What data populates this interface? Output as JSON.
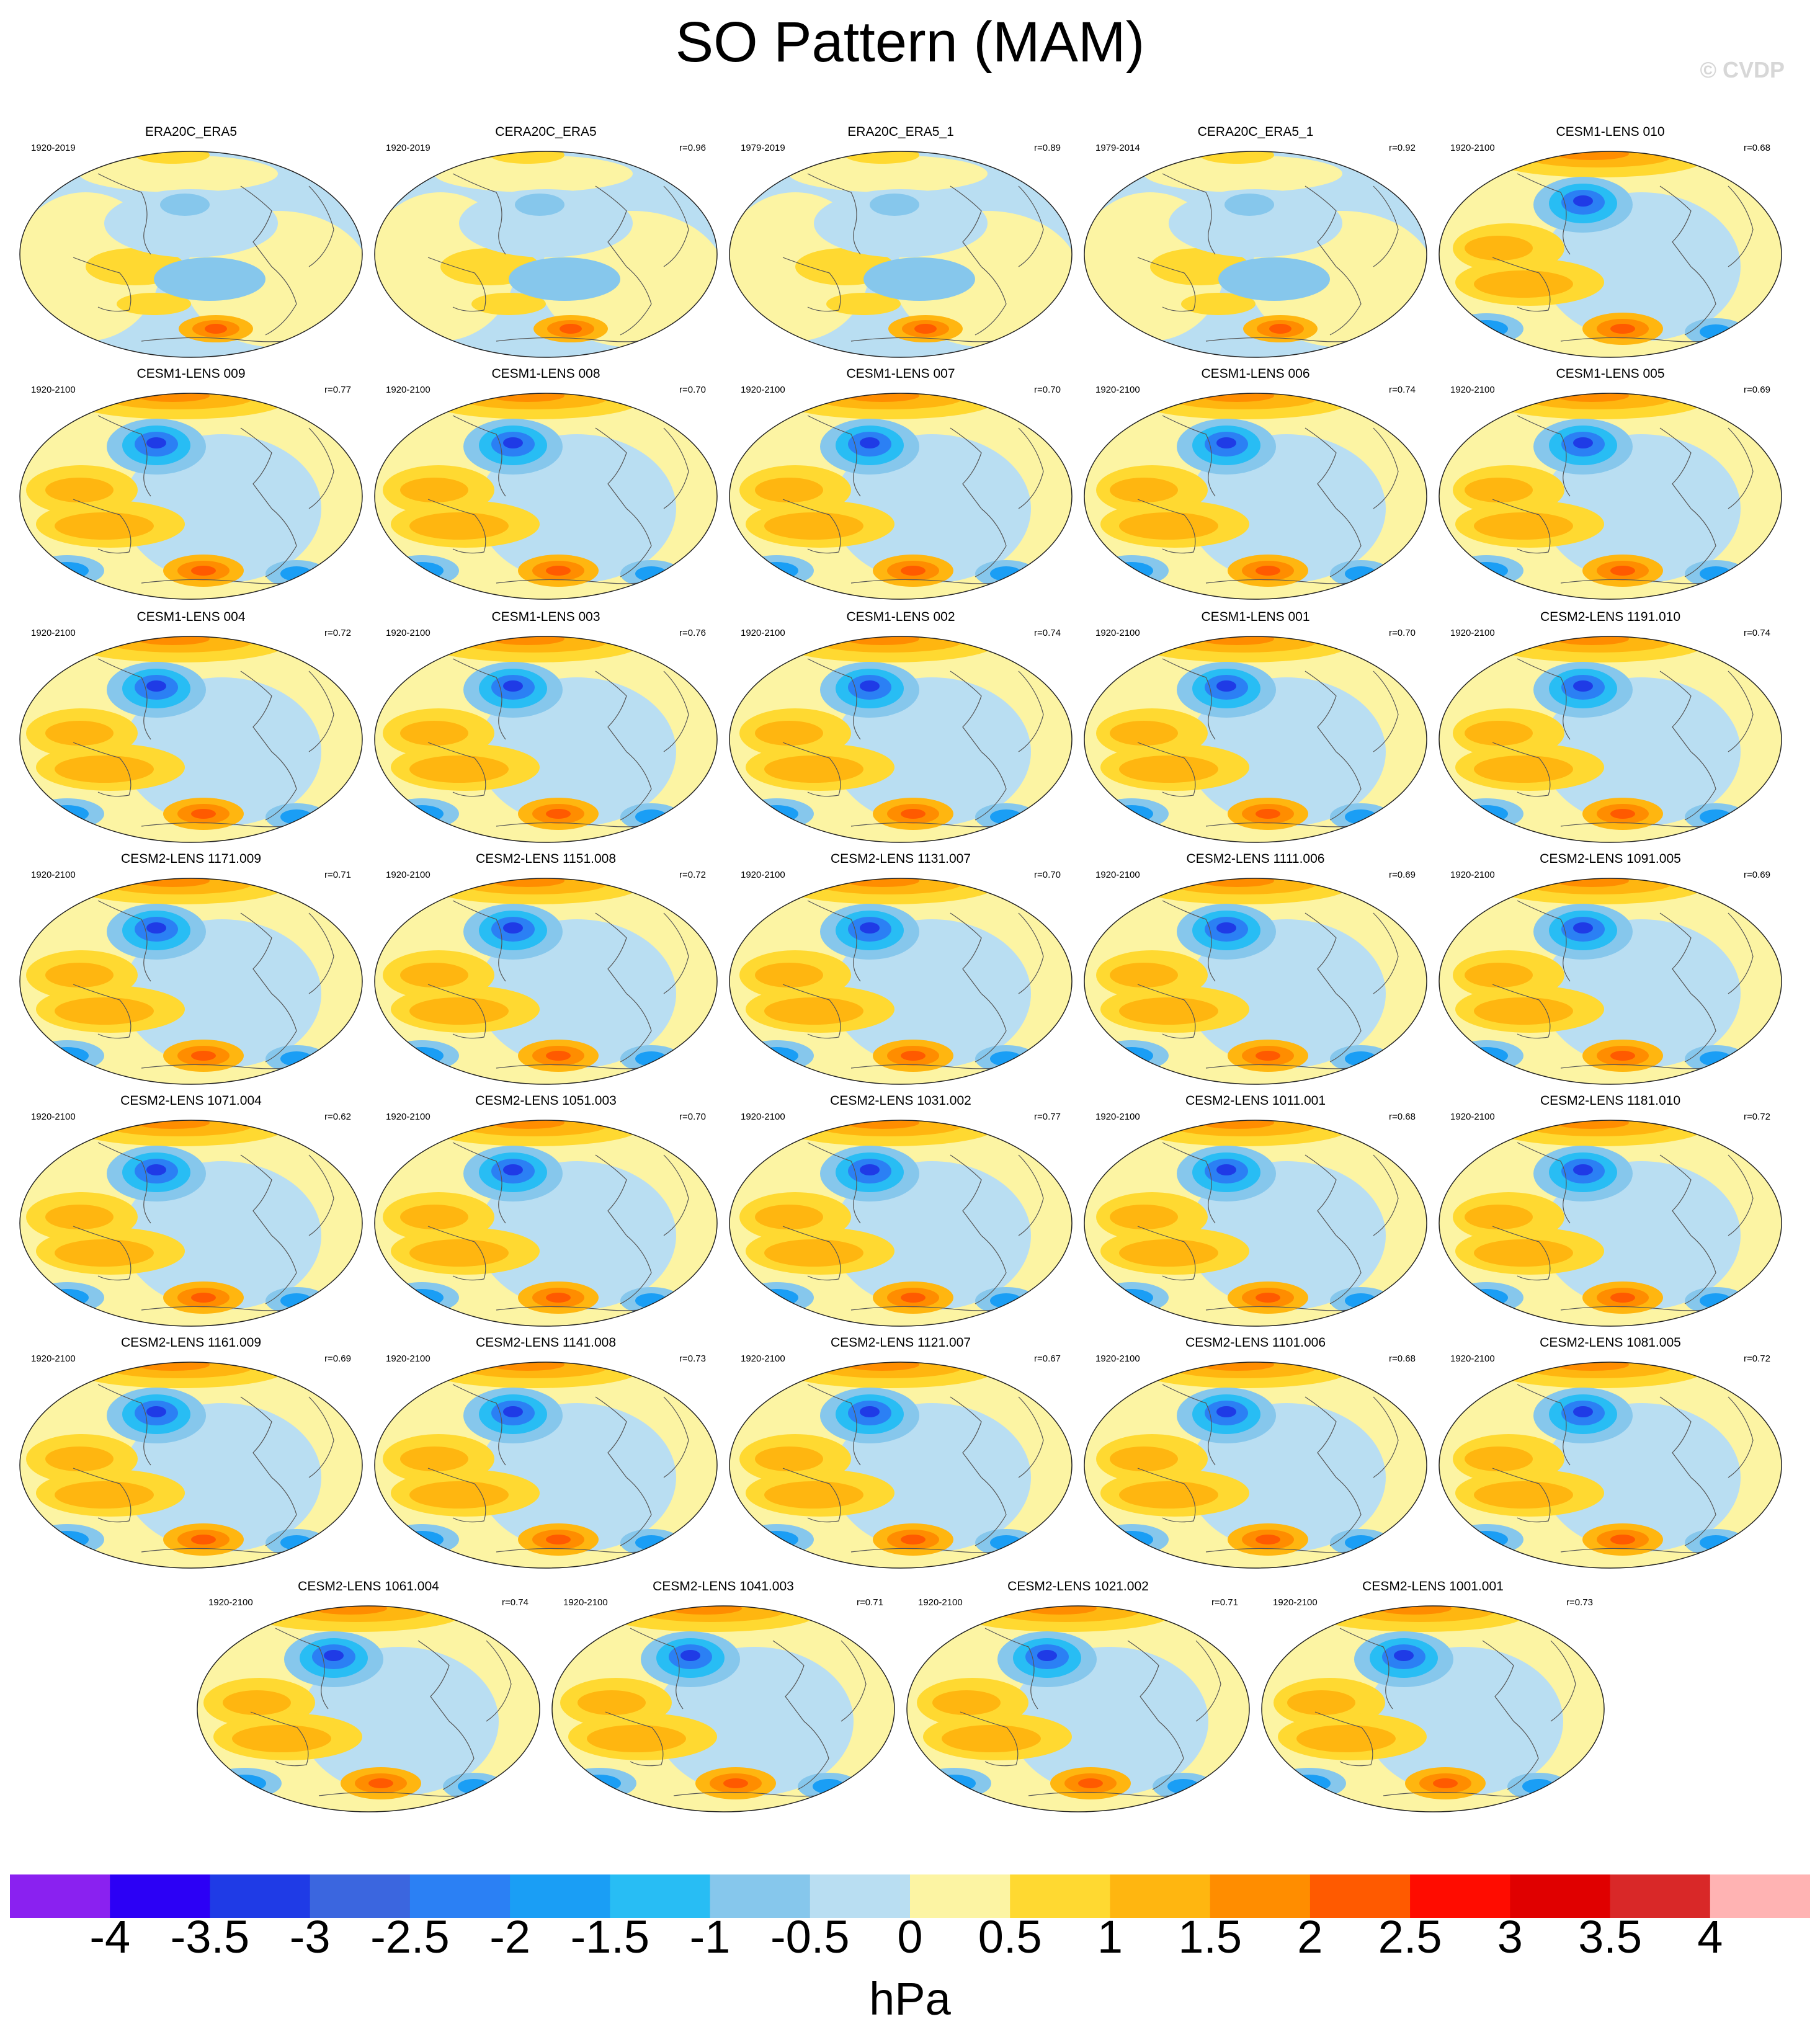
{
  "title": "SO Pattern (MAM)",
  "watermark": "© CVDP",
  "panels": [
    {
      "name": "ERA20C_ERA5",
      "years": "1920-2019",
      "corr": "",
      "style": "obs"
    },
    {
      "name": "CERA20C_ERA5",
      "years": "1920-2019",
      "corr": "r=0.96",
      "style": "obs"
    },
    {
      "name": "ERA20C_ERA5_1",
      "years": "1979-2019",
      "corr": "r=0.89",
      "style": "obs"
    },
    {
      "name": "CERA20C_ERA5_1",
      "years": "1979-2014",
      "corr": "r=0.92",
      "style": "obs"
    },
    {
      "name": "CESM1-LENS 010",
      "years": "1920-2100",
      "corr": "r=0.68",
      "style": "model"
    },
    {
      "name": "CESM1-LENS 009",
      "years": "1920-2100",
      "corr": "r=0.77",
      "style": "model"
    },
    {
      "name": "CESM1-LENS 008",
      "years": "1920-2100",
      "corr": "r=0.70",
      "style": "model"
    },
    {
      "name": "CESM1-LENS 007",
      "years": "1920-2100",
      "corr": "r=0.70",
      "style": "model"
    },
    {
      "name": "CESM1-LENS 006",
      "years": "1920-2100",
      "corr": "r=0.74",
      "style": "model"
    },
    {
      "name": "CESM1-LENS 005",
      "years": "1920-2100",
      "corr": "r=0.69",
      "style": "model"
    },
    {
      "name": "CESM1-LENS 004",
      "years": "1920-2100",
      "corr": "r=0.72",
      "style": "model"
    },
    {
      "name": "CESM1-LENS 003",
      "years": "1920-2100",
      "corr": "r=0.76",
      "style": "model"
    },
    {
      "name": "CESM1-LENS 002",
      "years": "1920-2100",
      "corr": "r=0.74",
      "style": "model"
    },
    {
      "name": "CESM1-LENS 001",
      "years": "1920-2100",
      "corr": "r=0.70",
      "style": "model"
    },
    {
      "name": "CESM2-LENS 1191.010",
      "years": "1920-2100",
      "corr": "r=0.74",
      "style": "model"
    },
    {
      "name": "CESM2-LENS 1171.009",
      "years": "1920-2100",
      "corr": "r=0.71",
      "style": "model"
    },
    {
      "name": "CESM2-LENS 1151.008",
      "years": "1920-2100",
      "corr": "r=0.72",
      "style": "model"
    },
    {
      "name": "CESM2-LENS 1131.007",
      "years": "1920-2100",
      "corr": "r=0.70",
      "style": "model"
    },
    {
      "name": "CESM2-LENS 1111.006",
      "years": "1920-2100",
      "corr": "r=0.69",
      "style": "model"
    },
    {
      "name": "CESM2-LENS 1091.005",
      "years": "1920-2100",
      "corr": "r=0.69",
      "style": "model"
    },
    {
      "name": "CESM2-LENS 1071.004",
      "years": "1920-2100",
      "corr": "r=0.62",
      "style": "model"
    },
    {
      "name": "CESM2-LENS 1051.003",
      "years": "1920-2100",
      "corr": "r=0.70",
      "style": "model"
    },
    {
      "name": "CESM2-LENS 1031.002",
      "years": "1920-2100",
      "corr": "r=0.77",
      "style": "model"
    },
    {
      "name": "CESM2-LENS 1011.001",
      "years": "1920-2100",
      "corr": "r=0.68",
      "style": "model"
    },
    {
      "name": "CESM2-LENS 1181.010",
      "years": "1920-2100",
      "corr": "r=0.72",
      "style": "model"
    },
    {
      "name": "CESM2-LENS 1161.009",
      "years": "1920-2100",
      "corr": "r=0.69",
      "style": "model"
    },
    {
      "name": "CESM2-LENS 1141.008",
      "years": "1920-2100",
      "corr": "r=0.73",
      "style": "model"
    },
    {
      "name": "CESM2-LENS 1121.007",
      "years": "1920-2100",
      "corr": "r=0.67",
      "style": "model"
    },
    {
      "name": "CESM2-LENS 1101.006",
      "years": "1920-2100",
      "corr": "r=0.68",
      "style": "model"
    },
    {
      "name": "CESM2-LENS 1081.005",
      "years": "1920-2100",
      "corr": "r=0.72",
      "style": "model"
    },
    {
      "name": "CESM2-LENS 1061.004",
      "years": "1920-2100",
      "corr": "r=0.74",
      "style": "model"
    },
    {
      "name": "CESM2-LENS 1041.003",
      "years": "1920-2100",
      "corr": "r=0.71",
      "style": "model"
    },
    {
      "name": "CESM2-LENS 1021.002",
      "years": "1920-2100",
      "corr": "r=0.71",
      "style": "model"
    },
    {
      "name": "CESM2-LENS 1001.001",
      "years": "1920-2100",
      "corr": "r=0.73",
      "style": "model"
    }
  ],
  "colorbar": {
    "units": "hPa",
    "labels": [
      "-4",
      "-3.5",
      "-3",
      "-2.5",
      "-2",
      "-1.5",
      "-1",
      "-0.5",
      "0",
      "0.5",
      "1",
      "1.5",
      "2",
      "2.5",
      "3",
      "3.5",
      "4"
    ],
    "colors": [
      "#8a21f0",
      "#2c00f5",
      "#1f3be6",
      "#3b66df",
      "#2b80f4",
      "#1a9ef5",
      "#28bdf4",
      "#86c7ec",
      "#b9def2",
      "#fcf4a3",
      "#ffd931",
      "#ffb610",
      "#ff8d00",
      "#ff5a00",
      "#ff0c00",
      "#e00000",
      "#d92828",
      "#ffb3b3"
    ]
  },
  "map_colors": {
    "ocean": "#b9def2",
    "neg1": "#86c7ec",
    "neg2": "#28bdf4",
    "neg3": "#1a9ef5",
    "neg4": "#2b80f4",
    "neg5": "#1f3be6",
    "pos1": "#fcf4a3",
    "pos2": "#ffd931",
    "pos3": "#ffb610",
    "pos4": "#ff8d00",
    "pos5": "#ff5a00",
    "pos6": "#ff0c00",
    "coast": "#555555"
  }
}
